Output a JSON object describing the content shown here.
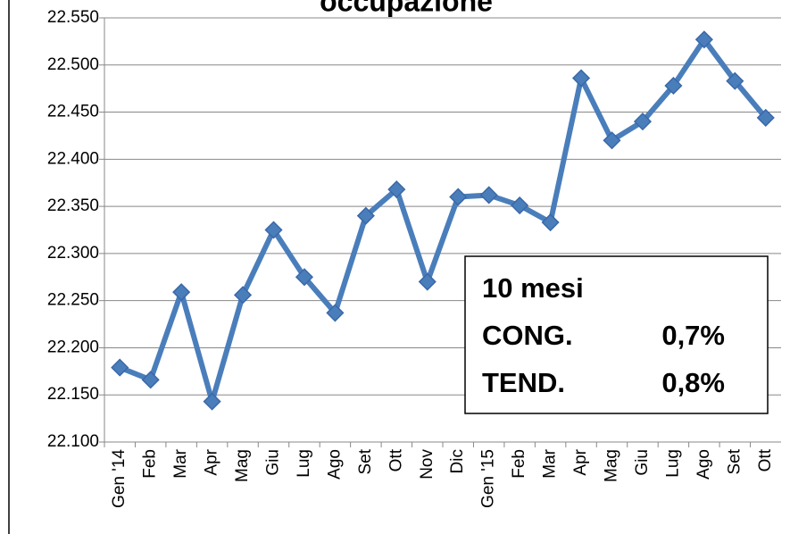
{
  "chart_data": {
    "type": "line",
    "title": "occupazione",
    "categories": [
      "Gen '14",
      "Feb",
      "Mar",
      "Apr",
      "Mag",
      "Giu",
      "Lug",
      "Ago",
      "Set",
      "Ott",
      "Nov",
      "Dic",
      "Gen '15",
      "Feb",
      "Mar",
      "Apr",
      "Mag",
      "Giu",
      "Lug",
      "Ago",
      "Set",
      "Ott"
    ],
    "series": [
      {
        "color": "#4a7ebb",
        "values": [
          22179,
          22166,
          22259,
          22143,
          22256,
          22325,
          22275,
          22237,
          22340,
          22368,
          22270,
          22360,
          22362,
          22351,
          22333,
          22486,
          22420,
          22440,
          22478,
          22527,
          22483,
          22444
        ]
      }
    ],
    "ylim": [
      22100,
      22550
    ],
    "yticks": [
      {
        "value": 22100,
        "label": "22.100"
      },
      {
        "value": 22150,
        "label": "22.150"
      },
      {
        "value": 22200,
        "label": "22.200"
      },
      {
        "value": 22250,
        "label": "22.250"
      },
      {
        "value": 22300,
        "label": "22.300"
      },
      {
        "value": 22350,
        "label": "22.350"
      },
      {
        "value": 22400,
        "label": "22.400"
      },
      {
        "value": 22450,
        "label": "22.450"
      },
      {
        "value": 22500,
        "label": "22.500"
      },
      {
        "value": 22550,
        "label": "22.550"
      }
    ],
    "grid": true,
    "annotation": {
      "title": "10 mesi",
      "rows": [
        [
          "CONG.",
          "0,7%"
        ],
        [
          "TEND.",
          "0,8%"
        ]
      ]
    }
  }
}
